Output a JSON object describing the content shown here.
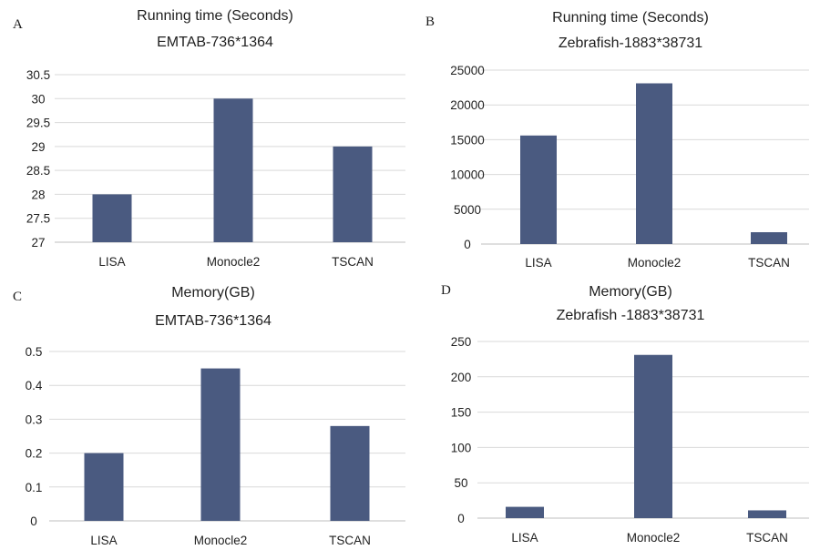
{
  "chart_data": [
    {
      "panel_label": "A",
      "type": "bar",
      "title": "Running time (Seconds)",
      "subtitle": "EMTAB-736*1364",
      "categories": [
        "LISA",
        "Monocle2",
        "TSCAN"
      ],
      "values": [
        28,
        30,
        29
      ],
      "ylim": [
        27,
        30.5
      ],
      "yticks": [
        "27",
        "27.5",
        "28",
        "28.5",
        "29",
        "29.5",
        "30",
        "30.5"
      ],
      "bar_color": "#4a5a80"
    },
    {
      "panel_label": "B",
      "type": "bar",
      "title": "Running time (Seconds)",
      "subtitle": "Zebrafish-1883*38731",
      "categories": [
        "LISA",
        "Monocle2",
        "TSCAN"
      ],
      "values": [
        15600,
        23100,
        1700
      ],
      "ylim": [
        0,
        25000
      ],
      "yticks": [
        "0",
        "5000",
        "10000",
        "15000",
        "20000",
        "25000"
      ],
      "bar_color": "#4a5a80"
    },
    {
      "panel_label": "C",
      "type": "bar",
      "title": "Memory(GB)",
      "subtitle": "EMTAB-736*1364",
      "categories": [
        "LISA",
        "Monocle2",
        "TSCAN"
      ],
      "values": [
        0.2,
        0.45,
        0.28
      ],
      "ylim": [
        0,
        0.5
      ],
      "yticks": [
        "0",
        "0.1",
        "0.2",
        "0.3",
        "0.4",
        "0.5"
      ],
      "bar_color": "#4a5a80"
    },
    {
      "panel_label": "D",
      "type": "bar",
      "title": "Memory(GB)",
      "subtitle": "Zebrafish -1883*38731",
      "categories": [
        "LISA",
        "Monocle2",
        "TSCAN"
      ],
      "values": [
        16,
        231,
        11
      ],
      "ylim": [
        0,
        250
      ],
      "yticks": [
        "0",
        "50",
        "100",
        "150",
        "200",
        "250"
      ],
      "bar_color": "#4a5a80"
    }
  ]
}
